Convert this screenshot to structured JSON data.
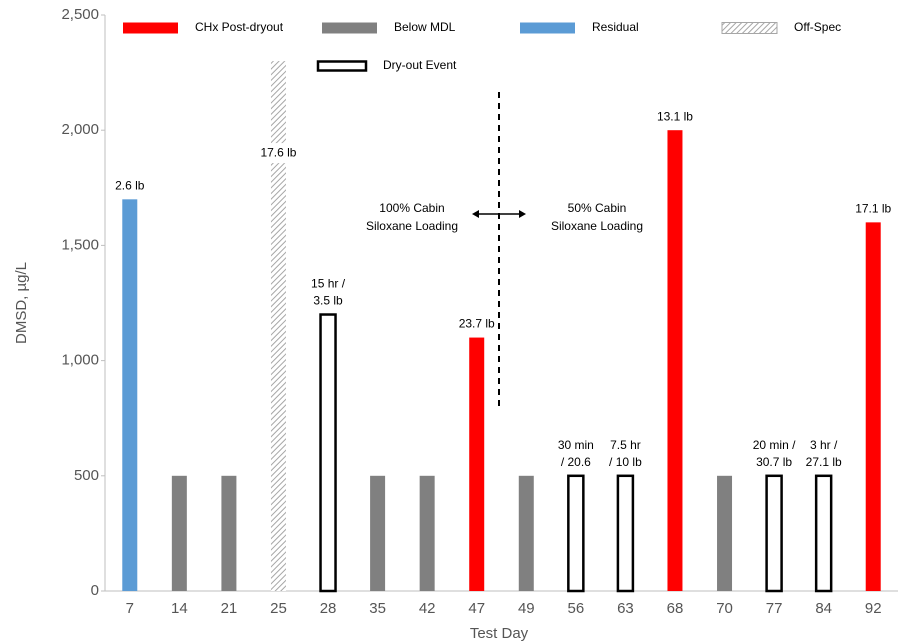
{
  "chart_data": {
    "type": "bar",
    "categories": [
      "7",
      "14",
      "21",
      "25",
      "28",
      "35",
      "42",
      "47",
      "49",
      "56",
      "63",
      "68",
      "70",
      "77",
      "84",
      "92"
    ],
    "series": [
      {
        "name": "CHx Post-dryout",
        "color": "#ff0000",
        "style": "fill",
        "values": [
          null,
          null,
          null,
          null,
          null,
          null,
          null,
          1100,
          null,
          null,
          null,
          2000,
          null,
          null,
          null,
          1600
        ]
      },
      {
        "name": "Below MDL",
        "color": "#808080",
        "style": "fill",
        "values": [
          null,
          500,
          500,
          null,
          null,
          500,
          500,
          null,
          500,
          null,
          null,
          null,
          500,
          null,
          null,
          null
        ]
      },
      {
        "name": "Residual",
        "color": "#5b9bd5",
        "style": "fill",
        "values": [
          1700,
          null,
          null,
          null,
          null,
          null,
          null,
          null,
          null,
          null,
          null,
          null,
          null,
          null,
          null,
          null
        ]
      },
      {
        "name": "Off-Spec",
        "color": "#a6a6a6",
        "style": "hatch",
        "values": [
          null,
          null,
          null,
          2300,
          null,
          null,
          null,
          null,
          null,
          null,
          null,
          null,
          null,
          null,
          null,
          null
        ]
      },
      {
        "name": "Dry-out Event",
        "color": "#000000",
        "style": "outline",
        "values": [
          null,
          null,
          null,
          null,
          1200,
          null,
          null,
          null,
          null,
          500,
          500,
          null,
          null,
          500,
          500,
          null
        ]
      }
    ],
    "bar_labels": [
      [
        "2.6 lb"
      ],
      null,
      null,
      [
        "17.6 lb"
      ],
      [
        "15 hr /",
        "3.5 lb"
      ],
      null,
      null,
      [
        "23.7 lb"
      ],
      null,
      [
        "30 min",
        "/ 20.6"
      ],
      [
        "7.5 hr",
        "/ 10 lb"
      ],
      [
        "13.1 lb"
      ],
      null,
      [
        "20 min /",
        "30.7 lb"
      ],
      [
        "3 hr /",
        "27.1 lb"
      ],
      [
        "17.1 lb"
      ]
    ],
    "annotations": [
      [
        "100% Cabin",
        "Siloxane Loading"
      ],
      [
        "50% Cabin",
        "Siloxane Loading"
      ]
    ],
    "xlabel": "Test Day",
    "ylabel": "DMSD, µg/L",
    "ylim": [
      0,
      2500
    ],
    "yticks": [
      0,
      500,
      {
        "value": 1000,
        "label": "1,000"
      },
      {
        "value": 1500,
        "label": "1,500"
      },
      {
        "value": 2000,
        "label": "2,000"
      },
      {
        "value": 2500,
        "label": "2,500"
      }
    ]
  }
}
